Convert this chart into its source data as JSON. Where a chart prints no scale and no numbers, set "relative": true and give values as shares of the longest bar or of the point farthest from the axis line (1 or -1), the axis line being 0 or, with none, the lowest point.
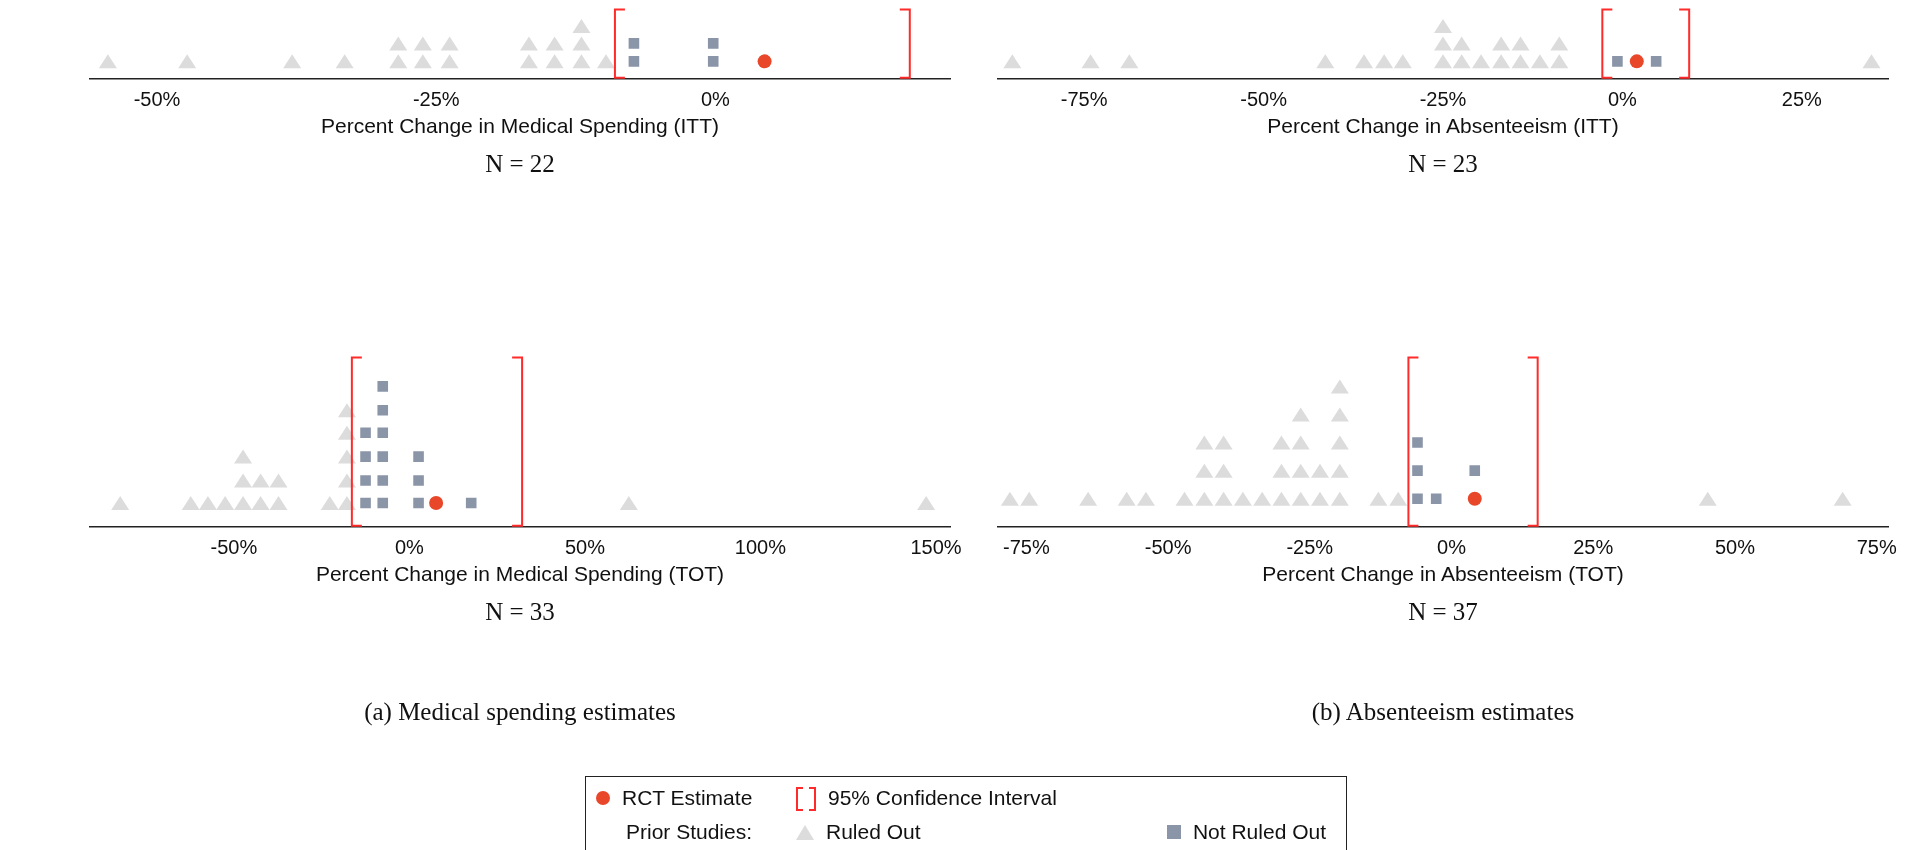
{
  "chart_data": [
    {
      "type": "scatter",
      "relative": true,
      "xlabel": "Percent Change in Medical Spending (ITT)",
      "xlim": [
        -56,
        21
      ],
      "xticks": [
        {
          "value": -50,
          "label": "-50%"
        },
        {
          "value": -25,
          "label": "-25%"
        },
        {
          "value": 0,
          "label": "0%"
        }
      ],
      "series": [
        {
          "color": "#e8472a",
          "marker": "circle",
          "x": [
            4.4
          ],
          "values": [
            0.33
          ]
        },
        {
          "color": "#dcdcdc",
          "marker": "triangle",
          "x": [
            -54.4,
            -47.3,
            -37.9,
            -33.2,
            -28.4,
            -26.2,
            -23.8,
            -16.7,
            -14.4,
            -12.0,
            -9.8,
            -28.4,
            -26.2,
            -23.8,
            -16.7,
            -14.4,
            -12.0,
            -12.0
          ],
          "values": [
            0.33,
            0.33,
            0.33,
            0.33,
            0.33,
            0.33,
            0.33,
            0.33,
            0.33,
            0.33,
            0.33,
            0.67,
            0.67,
            0.67,
            0.67,
            0.67,
            0.67,
            1
          ]
        },
        {
          "color": "#8a95a8",
          "marker": "square",
          "x": [
            -7.3,
            -7.3,
            -0.2,
            -0.2
          ],
          "values": [
            0.33,
            0.67,
            0.33,
            0.67
          ]
        }
      ],
      "ref_lines": [
        {
          "axis": "x",
          "value": -9.0,
          "color": "#ff2a2a"
        },
        {
          "axis": "x",
          "value": 17.4,
          "color": "#ff2a2a"
        }
      ],
      "annotations": [
        "N = 22"
      ]
    },
    {
      "type": "scatter",
      "relative": true,
      "xlabel": "Percent Change in Absenteeism (ITT)",
      "xlim": [
        -87,
        37
      ],
      "xticks": [
        {
          "value": -75,
          "label": "-75%"
        },
        {
          "value": -50,
          "label": "-50%"
        },
        {
          "value": -25,
          "label": "-25%"
        },
        {
          "value": 0,
          "label": "0%"
        },
        {
          "value": 25,
          "label": "25%"
        }
      ],
      "series": [
        {
          "color": "#e8472a",
          "marker": "circle",
          "x": [
            2.0
          ],
          "values": [
            0.33
          ]
        },
        {
          "color": "#dcdcdc",
          "marker": "triangle",
          "x": [
            -85.0,
            -74.1,
            -68.7,
            -41.4,
            -36.0,
            -33.2,
            -30.6,
            -25.0,
            -22.4,
            -19.7,
            -16.9,
            -14.2,
            -11.5,
            -8.8,
            34.7,
            -25.0,
            -22.4,
            -16.9,
            -14.2,
            -8.8,
            -25.0
          ],
          "values": [
            0.33,
            0.33,
            0.33,
            0.33,
            0.33,
            0.33,
            0.33,
            0.33,
            0.33,
            0.33,
            0.33,
            0.33,
            0.33,
            0.33,
            0.33,
            0.67,
            0.67,
            0.67,
            0.67,
            0.67,
            1
          ]
        },
        {
          "color": "#8a95a8",
          "marker": "square",
          "x": [
            -0.7,
            4.7
          ],
          "values": [
            0.33,
            0.33
          ]
        }
      ],
      "ref_lines": [
        {
          "axis": "x",
          "value": -2.8,
          "color": "#ff2a2a"
        },
        {
          "axis": "x",
          "value": 9.3,
          "color": "#ff2a2a"
        }
      ],
      "annotations": [
        "N = 23"
      ]
    },
    {
      "type": "scatter",
      "relative": true,
      "xlabel": "Percent Change in Medical Spending (TOT)",
      "xlim": [
        -91,
        154
      ],
      "xticks": [
        {
          "value": -50,
          "label": "-50%"
        },
        {
          "value": 0,
          "label": "0%"
        },
        {
          "value": 50,
          "label": "50%"
        },
        {
          "value": 100,
          "label": "100%"
        },
        {
          "value": 150,
          "label": "150%"
        }
      ],
      "series": [
        {
          "color": "#e8472a",
          "marker": "circle",
          "x": [
            7.6
          ],
          "values": [
            0.17
          ]
        },
        {
          "color": "#dcdcdc",
          "marker": "triangle",
          "x": [
            -82.4,
            -62.3,
            -57.4,
            -52.5,
            -47.4,
            -42.4,
            -37.3,
            -22.7,
            -17.8,
            62.5,
            147.2,
            -47.4,
            -42.4,
            -37.3,
            -17.8,
            -47.4,
            -17.8,
            -17.8,
            -17.8
          ],
          "values": [
            0.17,
            0.17,
            0.17,
            0.17,
            0.17,
            0.17,
            0.17,
            0.17,
            0.17,
            0.17,
            0.17,
            0.33,
            0.33,
            0.33,
            0.33,
            0.5,
            0.5,
            0.67,
            0.83
          ]
        },
        {
          "color": "#8a95a8",
          "marker": "square",
          "x": [
            -12.5,
            -12.5,
            -12.5,
            -12.5,
            -7.6,
            -7.6,
            -7.6,
            -7.6,
            -7.6,
            -7.6,
            2.6,
            2.6,
            2.6,
            17.6
          ],
          "values": [
            0.17,
            0.33,
            0.5,
            0.67,
            0.17,
            0.33,
            0.5,
            0.67,
            0.83,
            1,
            0.17,
            0.33,
            0.5,
            0.17
          ]
        }
      ],
      "ref_lines": [
        {
          "axis": "x",
          "value": -16.4,
          "color": "#ff2a2a"
        },
        {
          "axis": "x",
          "value": 32.1,
          "color": "#ff2a2a"
        }
      ],
      "annotations": [
        "N = 33",
        "(a) Medical spending estimates"
      ]
    },
    {
      "type": "scatter",
      "relative": true,
      "xlabel": "Percent Change in Absenteeism (TOT)",
      "xlim": [
        -80,
        77
      ],
      "xticks": [
        {
          "value": -75,
          "label": "-75%"
        },
        {
          "value": -50,
          "label": "-50%"
        },
        {
          "value": -25,
          "label": "-25%"
        },
        {
          "value": 0,
          "label": "0%"
        },
        {
          "value": 25,
          "label": "25%"
        },
        {
          "value": 50,
          "label": "50%"
        },
        {
          "value": 75,
          "label": "75%"
        }
      ],
      "legend": "bottom",
      "legend_title": "Prior Studies:",
      "series": [
        {
          "name": "RCT Estimate",
          "color": "#e8472a",
          "marker": "circle",
          "x": [
            4.1
          ],
          "values": [
            0.2
          ]
        },
        {
          "name": "Ruled Out",
          "color": "#dcdcdc",
          "marker": "triangle",
          "x": [
            -77.9,
            -74.5,
            -64.1,
            -57.3,
            -53.9,
            -47.1,
            -43.6,
            -40.2,
            -36.8,
            -33.4,
            -30.0,
            -26.6,
            -23.2,
            -19.7,
            -12.9,
            -9.4,
            45.2,
            69.0,
            -43.6,
            -40.2,
            -30.0,
            -26.6,
            -23.2,
            -19.7,
            -43.6,
            -40.2,
            -30.0,
            -26.6,
            -19.7,
            -26.6,
            -19.7,
            -19.7
          ],
          "values": [
            0.2,
            0.2,
            0.2,
            0.2,
            0.2,
            0.2,
            0.2,
            0.2,
            0.2,
            0.2,
            0.2,
            0.2,
            0.2,
            0.2,
            0.2,
            0.2,
            0.2,
            0.2,
            0.4,
            0.4,
            0.4,
            0.4,
            0.4,
            0.4,
            0.6,
            0.6,
            0.6,
            0.6,
            0.6,
            0.8,
            0.8,
            1
          ]
        },
        {
          "name": "Not Ruled Out",
          "color": "#8a95a8",
          "marker": "square",
          "x": [
            -6.0,
            -6.0,
            -6.0,
            -2.7,
            4.1
          ],
          "values": [
            0.2,
            0.4,
            0.6,
            0.2,
            0.4
          ]
        }
      ],
      "ref_lines": [
        {
          "axis": "x",
          "value": -7.6,
          "color": "#ff2a2a"
        },
        {
          "axis": "x",
          "value": 15.2,
          "color": "#ff2a2a"
        }
      ],
      "annotations": [
        "N = 37",
        "(b) Absenteeism estimates",
        "95% Confidence Interval"
      ]
    }
  ]
}
